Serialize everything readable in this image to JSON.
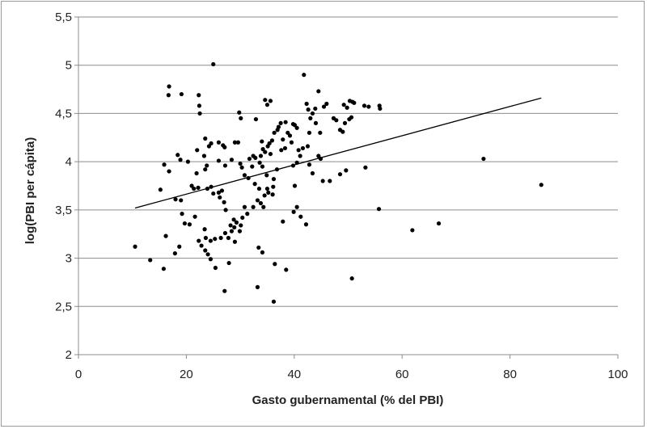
{
  "chart_data": {
    "type": "scatter",
    "xlabel": "Gasto gubernamental (% del PBI)",
    "ylabel": "log(PBI per cápita)",
    "xlim": [
      0,
      100
    ],
    "ylim": [
      2,
      5.5
    ],
    "x_ticks": [
      "0",
      "20",
      "40",
      "60",
      "80",
      "100"
    ],
    "y_ticks": [
      "2",
      "2,5",
      "3",
      "3,5",
      "4",
      "4,5",
      "5",
      "5,5"
    ],
    "grid": "horizontal",
    "legend": "none",
    "point_color": "#000000",
    "trendline": {
      "x": [
        10.5,
        85.8
      ],
      "y": [
        3.52,
        4.66
      ],
      "color": "#000000"
    },
    "points": [
      [
        25.0,
        5.01
      ],
      [
        16.8,
        4.78
      ],
      [
        16.7,
        4.69
      ],
      [
        19.1,
        4.7
      ],
      [
        22.3,
        4.69
      ],
      [
        22.4,
        4.58
      ],
      [
        22.5,
        4.5
      ],
      [
        41.8,
        4.9
      ],
      [
        44.5,
        4.73
      ],
      [
        34.6,
        4.64
      ],
      [
        35.6,
        4.63
      ],
      [
        35.0,
        4.59
      ],
      [
        32.9,
        4.44
      ],
      [
        29.8,
        4.51
      ],
      [
        30.1,
        4.45
      ],
      [
        37.5,
        4.4
      ],
      [
        38.4,
        4.41
      ],
      [
        39.8,
        4.39
      ],
      [
        40.1,
        4.38
      ],
      [
        40.5,
        4.35
      ],
      [
        38.8,
        4.3
      ],
      [
        39.2,
        4.27
      ],
      [
        37.9,
        4.23
      ],
      [
        39.5,
        4.2
      ],
      [
        38.3,
        4.14
      ],
      [
        37.6,
        4.12
      ],
      [
        40.8,
        4.12
      ],
      [
        41.6,
        4.14
      ],
      [
        42.5,
        4.16
      ],
      [
        42.8,
        4.3
      ],
      [
        43.0,
        4.45
      ],
      [
        43.4,
        4.5
      ],
      [
        43.9,
        4.55
      ],
      [
        42.3,
        4.6
      ],
      [
        42.6,
        4.54
      ],
      [
        44.0,
        4.4
      ],
      [
        44.8,
        4.3
      ],
      [
        45.5,
        4.57
      ],
      [
        46.0,
        4.6
      ],
      [
        47.3,
        4.45
      ],
      [
        47.8,
        4.43
      ],
      [
        48.5,
        4.33
      ],
      [
        49.4,
        4.4
      ],
      [
        49.2,
        4.59
      ],
      [
        49.8,
        4.56
      ],
      [
        50.3,
        4.63
      ],
      [
        50.8,
        4.62
      ],
      [
        51.1,
        4.61
      ],
      [
        53.0,
        4.58
      ],
      [
        53.8,
        4.57
      ],
      [
        55.8,
        4.58
      ],
      [
        55.9,
        4.55
      ],
      [
        50.2,
        4.44
      ],
      [
        50.6,
        4.46
      ],
      [
        49.0,
        4.31
      ],
      [
        23.5,
        4.24
      ],
      [
        24.6,
        4.19
      ],
      [
        24.2,
        4.16
      ],
      [
        26.0,
        4.2
      ],
      [
        26.8,
        4.17
      ],
      [
        27.1,
        4.15
      ],
      [
        29.0,
        4.2
      ],
      [
        29.6,
        4.2
      ],
      [
        22.0,
        4.12
      ],
      [
        23.3,
        4.06
      ],
      [
        18.4,
        4.07
      ],
      [
        18.9,
        4.02
      ],
      [
        15.9,
        3.97
      ],
      [
        16.8,
        3.9
      ],
      [
        15.2,
        3.71
      ],
      [
        20.3,
        4.0
      ],
      [
        21.9,
        3.88
      ],
      [
        23.5,
        3.92
      ],
      [
        23.8,
        3.96
      ],
      [
        26.0,
        4.01
      ],
      [
        27.2,
        3.96
      ],
      [
        28.4,
        4.02
      ],
      [
        30.0,
        3.98
      ],
      [
        30.3,
        3.94
      ],
      [
        30.8,
        3.86
      ],
      [
        31.7,
        4.03
      ],
      [
        32.4,
        4.06
      ],
      [
        32.8,
        4.04
      ],
      [
        32.2,
        3.95
      ],
      [
        31.5,
        3.83
      ],
      [
        32.7,
        3.77
      ],
      [
        33.8,
        4.06
      ],
      [
        34.2,
        4.13
      ],
      [
        34.6,
        4.1
      ],
      [
        35.1,
        4.16
      ],
      [
        34.0,
        4.21
      ],
      [
        35.4,
        4.19
      ],
      [
        36.3,
        4.3
      ],
      [
        36.9,
        4.33
      ],
      [
        37.1,
        4.36
      ],
      [
        35.9,
        4.22
      ],
      [
        35.6,
        4.08
      ],
      [
        33.6,
        3.99
      ],
      [
        34.1,
        3.95
      ],
      [
        34.9,
        3.86
      ],
      [
        36.2,
        3.82
      ],
      [
        36.8,
        3.92
      ],
      [
        33.5,
        3.72
      ],
      [
        34.5,
        3.65
      ],
      [
        35.2,
        3.68
      ],
      [
        35.0,
        3.72
      ],
      [
        33.8,
        3.57
      ],
      [
        34.3,
        3.53
      ],
      [
        36.1,
        3.74
      ],
      [
        39.8,
        3.96
      ],
      [
        40.5,
        3.99
      ],
      [
        41.1,
        4.06
      ],
      [
        42.8,
        3.97
      ],
      [
        43.4,
        3.88
      ],
      [
        44.5,
        4.06
      ],
      [
        44.9,
        4.03
      ],
      [
        45.3,
        3.8
      ],
      [
        46.6,
        3.8
      ],
      [
        48.5,
        3.87
      ],
      [
        49.6,
        3.91
      ],
      [
        53.2,
        3.94
      ],
      [
        40.1,
        3.75
      ],
      [
        40.5,
        3.53
      ],
      [
        39.9,
        3.48
      ],
      [
        41.2,
        3.43
      ],
      [
        42.2,
        3.35
      ],
      [
        37.9,
        3.38
      ],
      [
        36.0,
        3.66
      ],
      [
        55.7,
        3.51
      ],
      [
        21.0,
        3.75
      ],
      [
        21.4,
        3.72
      ],
      [
        22.2,
        3.73
      ],
      [
        18.0,
        3.61
      ],
      [
        19.0,
        3.6
      ],
      [
        19.2,
        3.46
      ],
      [
        20.6,
        3.35
      ],
      [
        19.7,
        3.36
      ],
      [
        21.6,
        3.43
      ],
      [
        23.9,
        3.72
      ],
      [
        24.6,
        3.74
      ],
      [
        25.0,
        3.67
      ],
      [
        26.0,
        3.68
      ],
      [
        26.6,
        3.7
      ],
      [
        27.0,
        3.58
      ],
      [
        26.2,
        3.63
      ],
      [
        27.3,
        3.5
      ],
      [
        28.2,
        3.34
      ],
      [
        28.8,
        3.4
      ],
      [
        29.3,
        3.37
      ],
      [
        30.1,
        3.34
      ],
      [
        30.4,
        3.42
      ],
      [
        30.8,
        3.53
      ],
      [
        31.3,
        3.46
      ],
      [
        32.4,
        3.53
      ],
      [
        33.2,
        3.6
      ],
      [
        23.4,
        3.3
      ],
      [
        23.6,
        3.21
      ],
      [
        24.5,
        3.18
      ],
      [
        25.3,
        3.2
      ],
      [
        26.4,
        3.21
      ],
      [
        27.2,
        3.26
      ],
      [
        27.8,
        3.21
      ],
      [
        28.4,
        3.28
      ],
      [
        29.0,
        3.17
      ],
      [
        28.9,
        3.32
      ],
      [
        29.9,
        3.28
      ],
      [
        22.3,
        3.18
      ],
      [
        22.8,
        3.13
      ],
      [
        23.5,
        3.08
      ],
      [
        24.0,
        3.04
      ],
      [
        24.5,
        2.99
      ],
      [
        25.4,
        2.9
      ],
      [
        27.9,
        2.95
      ],
      [
        16.2,
        3.23
      ],
      [
        18.7,
        3.12
      ],
      [
        17.9,
        3.05
      ],
      [
        15.8,
        2.89
      ],
      [
        13.3,
        2.98
      ],
      [
        10.5,
        3.12
      ],
      [
        33.4,
        3.11
      ],
      [
        34.1,
        3.06
      ],
      [
        36.4,
        2.94
      ],
      [
        38.5,
        2.88
      ],
      [
        27.1,
        2.66
      ],
      [
        33.2,
        2.7
      ],
      [
        36.2,
        2.55
      ],
      [
        50.7,
        2.79
      ],
      [
        61.9,
        3.29
      ],
      [
        66.8,
        3.36
      ],
      [
        75.1,
        4.03
      ],
      [
        85.8,
        3.76
      ]
    ]
  }
}
